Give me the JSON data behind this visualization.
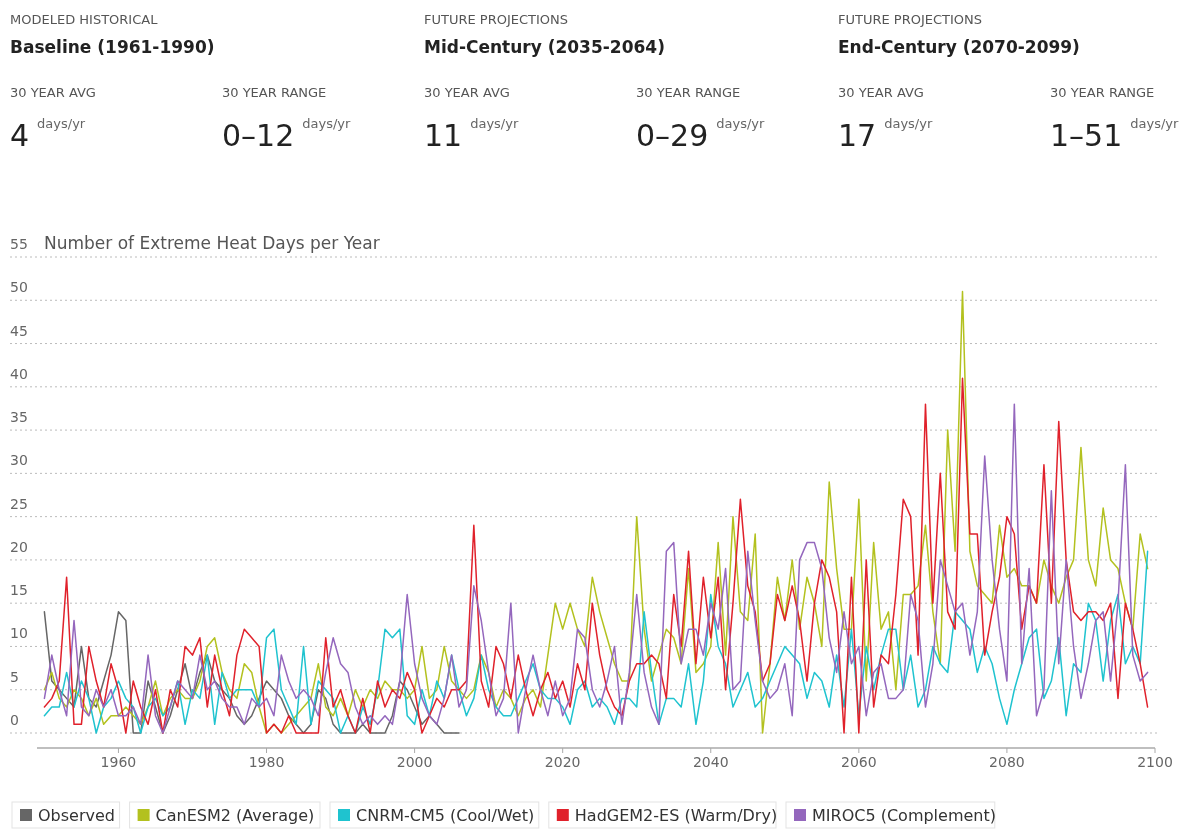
{
  "chart_data": {
    "type": "line",
    "title": "Number of Extreme Heat Days per Year",
    "annotations": [
      "MODELED HISTORICAL",
      "Baseline (1961-1990)",
      "30 YEAR AVG",
      "4",
      "days/yr",
      "30 YEAR RANGE",
      "0–12",
      "days/yr",
      "FUTURE PROJECTIONS",
      "Mid-Century (2035-2064)",
      "30 YEAR AVG",
      "11",
      "days/yr",
      "30 YEAR RANGE",
      "0–29",
      "days/yr",
      "FUTURE PROJECTIONS",
      "End-Century (2070-2099)",
      "30 YEAR AVG",
      "17",
      "days/yr",
      "30 YEAR RANGE",
      "1–51",
      "days/yr"
    ],
    "xlim": [
      1949,
      2100
    ],
    "xticks": [
      1960,
      1980,
      2000,
      2020,
      2040,
      2060,
      2080,
      2100
    ],
    "ylim": [
      0,
      55
    ],
    "yticks": [
      0,
      5,
      10,
      15,
      20,
      25,
      30,
      35,
      40,
      45,
      50,
      55
    ],
    "grid": "y",
    "legend": "bottom",
    "marker": "none",
    "line_style": "solid",
    "series": [
      {
        "name": "Observed",
        "color": "#666666",
        "x": [
          1950,
          1951,
          1952,
          1953,
          1954,
          1955,
          1956,
          1957,
          1958,
          1959,
          1960,
          1961,
          1962,
          1963,
          1964,
          1965,
          1966,
          1967,
          1968,
          1969,
          1970,
          1971,
          1972,
          1973,
          1974,
          1975,
          1976,
          1977,
          1978,
          1979,
          1980,
          1981,
          1982,
          1983,
          1984,
          1985,
          1986,
          1987,
          1988,
          1989,
          1990,
          1991,
          1992,
          1993,
          1994,
          1995,
          1996,
          1997,
          1998,
          1999,
          2000,
          2001,
          2002,
          2003,
          2004,
          2005,
          2006
        ],
        "values": [
          14,
          6,
          5,
          4,
          3,
          10,
          4,
          3,
          6,
          9,
          14,
          13,
          0,
          0,
          6,
          3,
          0,
          2,
          5,
          8,
          4,
          7,
          9,
          6,
          5,
          4,
          2,
          1,
          2,
          4,
          6,
          5,
          4,
          2,
          1,
          0,
          1,
          5,
          4,
          1,
          0,
          0,
          0,
          1,
          0,
          0,
          0,
          2,
          6,
          5,
          3,
          1,
          2,
          1,
          0,
          0,
          0
        ]
      },
      {
        "name": "CanESM2 (Average)",
        "color": "#b3c11f",
        "values": [
          5,
          7,
          4,
          3,
          5,
          4,
          2,
          4,
          1,
          2,
          2,
          3,
          2,
          1,
          3,
          6,
          2,
          4,
          5,
          4,
          4,
          6,
          10,
          11,
          7,
          5,
          4,
          8,
          7,
          3,
          0,
          1,
          0,
          1,
          2,
          3,
          4,
          8,
          3,
          2,
          4,
          2,
          5,
          3,
          5,
          4,
          6,
          5,
          5,
          4,
          5,
          10,
          4,
          5,
          10,
          6,
          5,
          4,
          5,
          9,
          7,
          3,
          5,
          4,
          2,
          4,
          5,
          3,
          9,
          15,
          12,
          15,
          12,
          10,
          18,
          14,
          11,
          8,
          6,
          6,
          25,
          12,
          6,
          9,
          12,
          11,
          8,
          19,
          7,
          8,
          10,
          22,
          9,
          25,
          14,
          13,
          23,
          0,
          8,
          18,
          13,
          20,
          12,
          18,
          15,
          10,
          29,
          19,
          12,
          12,
          27,
          6,
          22,
          12,
          14,
          5,
          16,
          16,
          17,
          24,
          14,
          8,
          35,
          21,
          51,
          21,
          17,
          16,
          15,
          24,
          18,
          19,
          17,
          17,
          15,
          20,
          17,
          15,
          18,
          20,
          33,
          20,
          17,
          26,
          20,
          19,
          15,
          12,
          23,
          19
        ]
      },
      {
        "name": "CNRM-CM5 (Cool/Wet)",
        "color": "#1fc3cf",
        "values": [
          2,
          3,
          3,
          7,
          3,
          6,
          4,
          0,
          3,
          4,
          6,
          4,
          3,
          0,
          3,
          4,
          2,
          3,
          6,
          1,
          5,
          4,
          9,
          1,
          7,
          4,
          5,
          5,
          5,
          3,
          11,
          12,
          5,
          3,
          1,
          10,
          1,
          6,
          5,
          4,
          0,
          2,
          0,
          3,
          1,
          5,
          12,
          11,
          12,
          2,
          1,
          5,
          2,
          6,
          4,
          9,
          5,
          2,
          4,
          9,
          5,
          3,
          2,
          2,
          4,
          6,
          8,
          5,
          4,
          4,
          3,
          1,
          5,
          6,
          3,
          4,
          3,
          1,
          4,
          4,
          3,
          14,
          7,
          1,
          4,
          4,
          3,
          8,
          1,
          6,
          16,
          10,
          8,
          3,
          5,
          7,
          3,
          4,
          6,
          8,
          10,
          9,
          8,
          4,
          7,
          6,
          3,
          9,
          3,
          12,
          2,
          10,
          5,
          9,
          12,
          12,
          5,
          9,
          3,
          5,
          10,
          8,
          7,
          14,
          13,
          12,
          7,
          10,
          8,
          4,
          1,
          5,
          8,
          11,
          12,
          4,
          6,
          11,
          2,
          8,
          7,
          15,
          13,
          6,
          13,
          16,
          8,
          10,
          8,
          21
        ]
      },
      {
        "name": "HadGEM2-ES (Warm/Dry)",
        "color": "#e0212b",
        "values": [
          3,
          4,
          6,
          18,
          1,
          1,
          10,
          6,
          3,
          8,
          5,
          0,
          6,
          3,
          1,
          5,
          0,
          5,
          3,
          10,
          9,
          11,
          3,
          9,
          5,
          2,
          9,
          12,
          11,
          10,
          0,
          1,
          0,
          2,
          0,
          0,
          0,
          0,
          11,
          3,
          5,
          2,
          0,
          4,
          0,
          6,
          3,
          5,
          4,
          7,
          5,
          0,
          2,
          4,
          3,
          5,
          5,
          6,
          24,
          6,
          3,
          10,
          8,
          4,
          9,
          5,
          2,
          5,
          7,
          4,
          6,
          3,
          8,
          5,
          15,
          9,
          5,
          3,
          2,
          6,
          8,
          8,
          9,
          8,
          4,
          16,
          10,
          21,
          8,
          18,
          11,
          18,
          5,
          15,
          27,
          17,
          14,
          6,
          8,
          16,
          13,
          17,
          13,
          6,
          15,
          20,
          18,
          14,
          0,
          18,
          0,
          20,
          3,
          9,
          8,
          16,
          27,
          25,
          9,
          38,
          15,
          30,
          14,
          12,
          41,
          23,
          23,
          9,
          14,
          18,
          25,
          23,
          12,
          17,
          15,
          31,
          15,
          36,
          20,
          14,
          13,
          14,
          14,
          13,
          15,
          4,
          15,
          12,
          8,
          3
        ]
      },
      {
        "name": "MIROC5 (Complement)",
        "color": "#9467bd",
        "values": [
          4,
          9,
          5,
          2,
          13,
          3,
          2,
          5,
          3,
          5,
          2,
          2,
          3,
          1,
          9,
          2,
          0,
          3,
          6,
          5,
          4,
          9,
          5,
          6,
          4,
          3,
          3,
          1,
          4,
          3,
          4,
          2,
          9,
          6,
          4,
          5,
          4,
          2,
          7,
          11,
          8,
          7,
          3,
          1,
          2,
          1,
          2,
          1,
          6,
          16,
          8,
          4,
          2,
          1,
          4,
          9,
          3,
          5,
          17,
          13,
          7,
          2,
          4,
          15,
          0,
          5,
          9,
          5,
          2,
          6,
          2,
          4,
          12,
          11,
          5,
          3,
          6,
          10,
          1,
          7,
          16,
          7,
          3,
          1,
          21,
          22,
          8,
          12,
          12,
          9,
          15,
          12,
          19,
          5,
          6,
          21,
          13,
          6,
          4,
          5,
          8,
          2,
          20,
          22,
          22,
          19,
          11,
          7,
          14,
          8,
          10,
          2,
          7,
          8,
          4,
          4,
          5,
          16,
          13,
          3,
          8,
          20,
          17,
          14,
          15,
          9,
          14,
          32,
          20,
          12,
          6,
          38,
          8,
          19,
          2,
          5,
          28,
          8,
          20,
          10,
          4,
          8,
          13,
          14,
          6,
          15,
          31,
          9,
          6,
          7
        ]
      }
    ],
    "x": [
      1950,
      1951,
      1952,
      1953,
      1954,
      1955,
      1956,
      1957,
      1958,
      1959,
      1960,
      1961,
      1962,
      1963,
      1964,
      1965,
      1966,
      1967,
      1968,
      1969,
      1970,
      1971,
      1972,
      1973,
      1974,
      1975,
      1976,
      1977,
      1978,
      1979,
      1980,
      1981,
      1982,
      1983,
      1984,
      1985,
      1986,
      1987,
      1988,
      1989,
      1990,
      1991,
      1992,
      1993,
      1994,
      1995,
      1996,
      1997,
      1998,
      1999,
      2000,
      2001,
      2002,
      2003,
      2004,
      2005,
      2006,
      2007,
      2008,
      2009,
      2010,
      2011,
      2012,
      2013,
      2014,
      2015,
      2016,
      2017,
      2018,
      2019,
      2020,
      2021,
      2022,
      2023,
      2024,
      2025,
      2026,
      2027,
      2028,
      2029,
      2030,
      2031,
      2032,
      2033,
      2034,
      2035,
      2036,
      2037,
      2038,
      2039,
      2040,
      2041,
      2042,
      2043,
      2044,
      2045,
      2046,
      2047,
      2048,
      2049,
      2050,
      2051,
      2052,
      2053,
      2054,
      2055,
      2056,
      2057,
      2058,
      2059,
      2060,
      2061,
      2062,
      2063,
      2064,
      2065,
      2066,
      2067,
      2068,
      2069,
      2070,
      2071,
      2072,
      2073,
      2074,
      2075,
      2076,
      2077,
      2078,
      2079,
      2080,
      2081,
      2082,
      2083,
      2084,
      2085,
      2086,
      2087,
      2088,
      2089,
      2090,
      2091,
      2092,
      2093,
      2094,
      2095,
      2096,
      2097,
      2098,
      2099
    ]
  }
}
